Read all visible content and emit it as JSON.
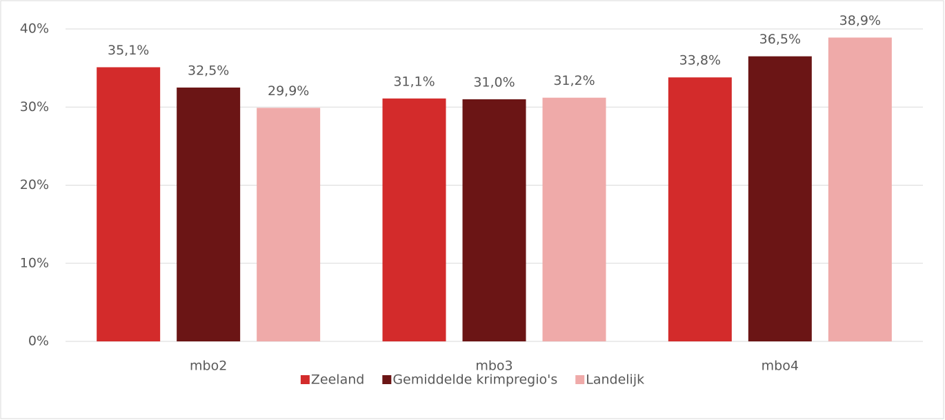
{
  "chart_data": {
    "type": "bar",
    "categories": [
      "mbo2",
      "mbo3",
      "mbo4"
    ],
    "series": [
      {
        "name": "Zeeland",
        "color": "#d32b2b",
        "values": [
          35.1,
          31.1,
          33.8
        ],
        "value_labels": [
          "35,1%",
          "31,1%",
          "33,8%"
        ]
      },
      {
        "name": "Gemiddelde krimpregio's",
        "color": "#6b1515",
        "values": [
          32.5,
          31.0,
          36.5
        ],
        "value_labels": [
          "32,5%",
          "31,0%",
          "36,5%"
        ]
      },
      {
        "name": "Landelijk",
        "color": "#efaaa9",
        "values": [
          29.9,
          31.2,
          38.9
        ],
        "value_labels": [
          "29,9%",
          "31,2%",
          "38,9%"
        ]
      }
    ],
    "ylim": [
      0,
      40
    ],
    "yticks": [
      {
        "value": 0,
        "label": "0%"
      },
      {
        "value": 10,
        "label": "10%"
      },
      {
        "value": 20,
        "label": "20%"
      },
      {
        "value": 30,
        "label": "30%"
      },
      {
        "value": 40,
        "label": "40%"
      }
    ],
    "grid": true,
    "legend": "bottom"
  }
}
